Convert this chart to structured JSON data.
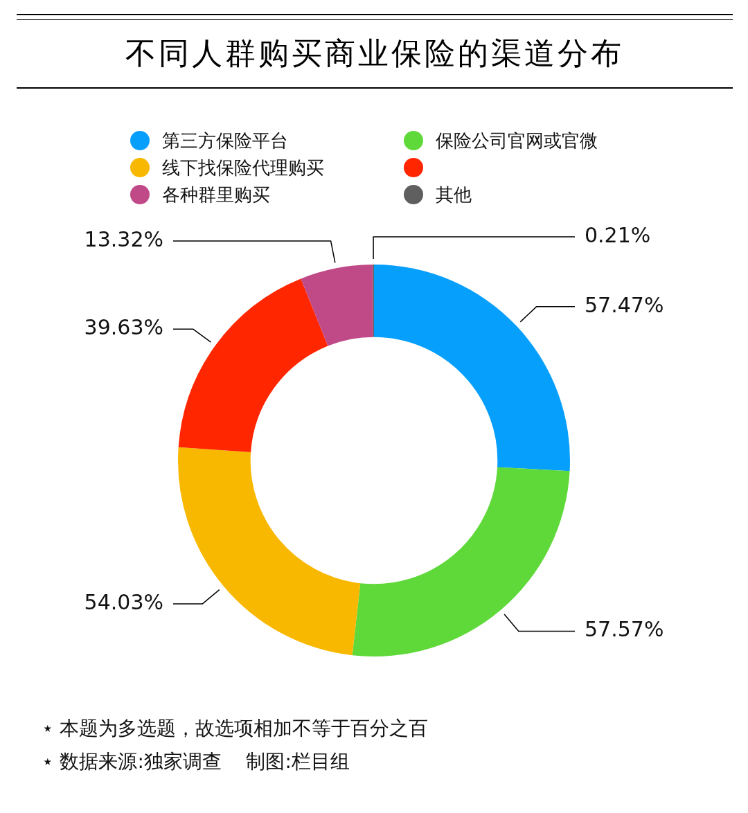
{
  "chart_data": {
    "type": "donut",
    "title": "不同人群购买商业保险的渠道分布",
    "categories": [
      "第三方保险平台",
      "保险公司官网或官微",
      "线下找保险代理购买",
      null,
      "各种群里购买",
      "其他"
    ],
    "values": [
      57.47,
      57.57,
      54.03,
      39.63,
      13.32,
      0.21
    ],
    "value_labels": [
      "57.47%",
      "57.57%",
      "54.03%",
      "39.63%",
      "13.32%",
      "0.21%"
    ],
    "colors": [
      "#069ffc",
      "#5fd93a",
      "#f9b800",
      "#ff2600",
      "#c04a87",
      "#5f5f5f"
    ],
    "legend": "top",
    "annotations": [
      "⋆ 本题为多选题，故选项相加不等于百分之百",
      "⋆ 数据来源:独家调查    制图:栏目组"
    ]
  }
}
